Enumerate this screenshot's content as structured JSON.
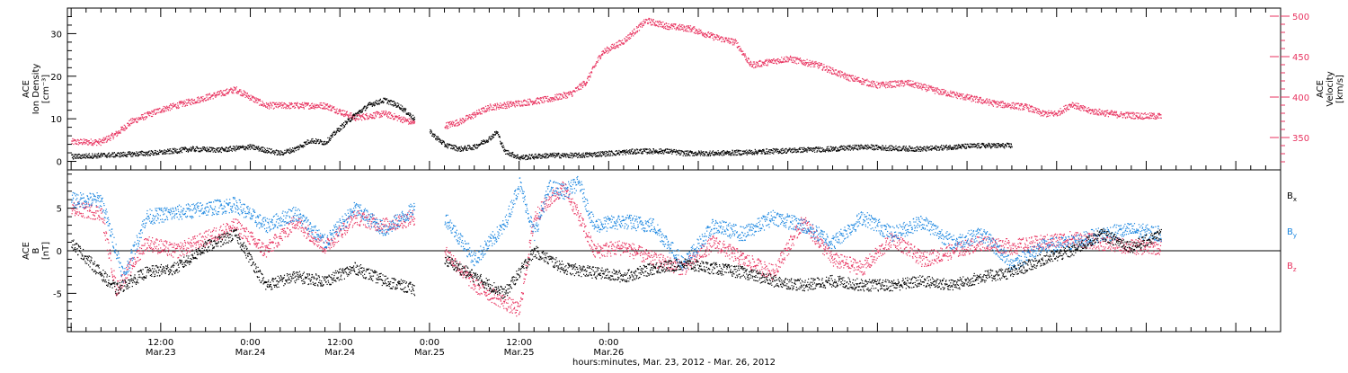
{
  "colors": {
    "black": "#000000",
    "pink": "#e8325f",
    "blue": "#1a86e0"
  },
  "chart_data": [
    {
      "type": "scatter",
      "panel": "top",
      "ylabel_left": [
        "ACE",
        "Ion Density",
        "[cm⁻³]"
      ],
      "ylabel_right": [
        "ACE",
        "Velocity",
        "[km/s]"
      ],
      "ylim_left": [
        -2,
        36
      ],
      "ylim_right": [
        310,
        510
      ],
      "left_ticks": [
        "0",
        "10",
        "20",
        "30"
      ],
      "right_ticks": [
        "350",
        "400",
        "450",
        "500"
      ],
      "series": [
        {
          "axis": "left",
          "color": "#000000",
          "values": [
            {
              "t": -12,
              "v": 1.2
            },
            {
              "t": -8,
              "v": 1.5
            },
            {
              "t": -4,
              "v": 1.8
            },
            {
              "t": 0,
              "v": 2.2
            },
            {
              "t": 4,
              "v": 3.0
            },
            {
              "t": 8,
              "v": 2.8
            },
            {
              "t": 12,
              "v": 3.5
            },
            {
              "t": 16,
              "v": 2.0
            },
            {
              "t": 18,
              "v": 3.0
            },
            {
              "t": 20,
              "v": 5.0
            },
            {
              "t": 22,
              "v": 4.5
            },
            {
              "t": 24,
              "v": 8.0
            },
            {
              "t": 26,
              "v": 11.0
            },
            {
              "t": 28,
              "v": 13.5
            },
            {
              "t": 30,
              "v": 14.5
            },
            {
              "t": 32,
              "v": 13.0
            },
            {
              "t": 34,
              "v": 10.0
            },
            {
              "t": 36,
              "v": 7.0
            },
            {
              "t": 38,
              "v": 4.0
            },
            {
              "t": 40,
              "v": 3.0
            },
            {
              "t": 42,
              "v": 3.5
            },
            {
              "t": 44,
              "v": 5.5
            },
            {
              "t": 45,
              "v": 7.0
            },
            {
              "t": 46,
              "v": 2.5
            },
            {
              "t": 48,
              "v": 1.0
            },
            {
              "t": 52,
              "v": 1.5
            },
            {
              "t": 56,
              "v": 1.5
            },
            {
              "t": 60,
              "v": 2.0
            },
            {
              "t": 64,
              "v": 2.5
            },
            {
              "t": 68,
              "v": 2.5
            },
            {
              "t": 70,
              "v": 2.0
            },
            {
              "t": 74,
              "v": 2.0
            },
            {
              "t": 78,
              "v": 2.2
            },
            {
              "t": 82,
              "v": 2.5
            },
            {
              "t": 86,
              "v": 2.8
            },
            {
              "t": 90,
              "v": 3.0
            },
            {
              "t": 94,
              "v": 3.5
            },
            {
              "t": 98,
              "v": 3.2
            },
            {
              "t": 102,
              "v": 3.0
            },
            {
              "t": 106,
              "v": 3.5
            },
            {
              "t": 110,
              "v": 3.8
            },
            {
              "t": 114,
              "v": 3.8
            }
          ]
        },
        {
          "axis": "right",
          "color": "#e8325f",
          "values": [
            {
              "t": -12,
              "v": 345
            },
            {
              "t": -8,
              "v": 345
            },
            {
              "t": -6,
              "v": 355
            },
            {
              "t": -4,
              "v": 370
            },
            {
              "t": 0,
              "v": 385
            },
            {
              "t": 4,
              "v": 395
            },
            {
              "t": 8,
              "v": 405
            },
            {
              "t": 10,
              "v": 410
            },
            {
              "t": 12,
              "v": 400
            },
            {
              "t": 14,
              "v": 390
            },
            {
              "t": 18,
              "v": 390
            },
            {
              "t": 22,
              "v": 390
            },
            {
              "t": 26,
              "v": 375
            },
            {
              "t": 30,
              "v": 380
            },
            {
              "t": 34,
              "v": 368
            },
            {
              "t": 38,
              "v": 365
            },
            {
              "t": 40,
              "v": 370
            },
            {
              "t": 44,
              "v": 388
            },
            {
              "t": 48,
              "v": 393
            },
            {
              "t": 52,
              "v": 398
            },
            {
              "t": 55,
              "v": 405
            },
            {
              "t": 57,
              "v": 420
            },
            {
              "t": 59,
              "v": 455
            },
            {
              "t": 62,
              "v": 470
            },
            {
              "t": 65,
              "v": 495
            },
            {
              "t": 68,
              "v": 488
            },
            {
              "t": 71,
              "v": 485
            },
            {
              "t": 74,
              "v": 475
            },
            {
              "t": 77,
              "v": 468
            },
            {
              "t": 79,
              "v": 440
            },
            {
              "t": 84,
              "v": 448
            },
            {
              "t": 88,
              "v": 440
            },
            {
              "t": 92,
              "v": 425
            },
            {
              "t": 96,
              "v": 415
            },
            {
              "t": 100,
              "v": 418
            },
            {
              "t": 104,
              "v": 408
            },
            {
              "t": 108,
              "v": 400
            },
            {
              "t": 112,
              "v": 392
            },
            {
              "t": 116,
              "v": 388
            },
            {
              "t": 118,
              "v": 380
            },
            {
              "t": 120,
              "v": 380
            },
            {
              "t": 122,
              "v": 392
            },
            {
              "t": 124,
              "v": 384
            },
            {
              "t": 128,
              "v": 379
            },
            {
              "t": 132,
              "v": 377
            },
            {
              "t": 134,
              "v": 377
            }
          ]
        }
      ]
    },
    {
      "type": "scatter",
      "panel": "bottom",
      "ylabel_left": [
        "ACE",
        "B",
        "[nT]"
      ],
      "ylim_left": [
        -9.5,
        9.5
      ],
      "left_ticks": [
        "-5",
        "0",
        "5"
      ],
      "zero_line": true,
      "legend_position": "right",
      "legend": [
        "Bx",
        "By",
        "Bz"
      ],
      "series": [
        {
          "name": "Bx",
          "color": "#000000",
          "values": [
            {
              "t": -12,
              "v": 1.0
            },
            {
              "t": -6,
              "v": -4.5
            },
            {
              "t": -2,
              "v": -2.5
            },
            {
              "t": 2,
              "v": -2.0
            },
            {
              "t": 6,
              "v": 0.5
            },
            {
              "t": 10,
              "v": 2.0
            },
            {
              "t": 14,
              "v": -4.0
            },
            {
              "t": 18,
              "v": -3.0
            },
            {
              "t": 22,
              "v": -3.5
            },
            {
              "t": 26,
              "v": -2.0
            },
            {
              "t": 30,
              "v": -3.5
            },
            {
              "t": 34,
              "v": -4.5
            },
            {
              "t": 38,
              "v": -1.0
            },
            {
              "t": 42,
              "v": -3.0
            },
            {
              "t": 46,
              "v": -5.0
            },
            {
              "t": 50,
              "v": 0.0
            },
            {
              "t": 54,
              "v": -2.0
            },
            {
              "t": 58,
              "v": -2.5
            },
            {
              "t": 62,
              "v": -3.0
            },
            {
              "t": 66,
              "v": -2.0
            },
            {
              "t": 70,
              "v": -1.5
            },
            {
              "t": 74,
              "v": -2.0
            },
            {
              "t": 78,
              "v": -2.5
            },
            {
              "t": 82,
              "v": -3.5
            },
            {
              "t": 86,
              "v": -4.0
            },
            {
              "t": 90,
              "v": -3.5
            },
            {
              "t": 94,
              "v": -4.0
            },
            {
              "t": 98,
              "v": -4.0
            },
            {
              "t": 102,
              "v": -3.5
            },
            {
              "t": 106,
              "v": -4.0
            },
            {
              "t": 110,
              "v": -3.0
            },
            {
              "t": 114,
              "v": -2.5
            },
            {
              "t": 118,
              "v": -1.0
            },
            {
              "t": 122,
              "v": 0.0
            },
            {
              "t": 126,
              "v": 2.0
            },
            {
              "t": 130,
              "v": 0.5
            },
            {
              "t": 134,
              "v": 2.0
            }
          ]
        },
        {
          "name": "By",
          "color": "#1a86e0",
          "values": [
            {
              "t": -12,
              "v": 6.0
            },
            {
              "t": -8,
              "v": 6.0
            },
            {
              "t": -5,
              "v": -3.0
            },
            {
              "t": -2,
              "v": 4.0
            },
            {
              "t": 2,
              "v": 4.5
            },
            {
              "t": 6,
              "v": 5.0
            },
            {
              "t": 10,
              "v": 5.5
            },
            {
              "t": 14,
              "v": 3.0
            },
            {
              "t": 18,
              "v": 4.5
            },
            {
              "t": 22,
              "v": 1.0
            },
            {
              "t": 26,
              "v": 5.0
            },
            {
              "t": 30,
              "v": 2.5
            },
            {
              "t": 34,
              "v": 5.0
            },
            {
              "t": 38,
              "v": 4.0
            },
            {
              "t": 42,
              "v": -1.0
            },
            {
              "t": 46,
              "v": 3.0
            },
            {
              "t": 48,
              "v": 8.0
            },
            {
              "t": 50,
              "v": 2.0
            },
            {
              "t": 52,
              "v": 7.5
            },
            {
              "t": 54,
              "v": 7.0
            },
            {
              "t": 56,
              "v": 8.0
            },
            {
              "t": 58,
              "v": 3.0
            },
            {
              "t": 62,
              "v": 3.5
            },
            {
              "t": 66,
              "v": 3.0
            },
            {
              "t": 70,
              "v": -1.5
            },
            {
              "t": 74,
              "v": 3.0
            },
            {
              "t": 78,
              "v": 2.0
            },
            {
              "t": 82,
              "v": 4.0
            },
            {
              "t": 86,
              "v": 3.0
            },
            {
              "t": 90,
              "v": 1.0
            },
            {
              "t": 94,
              "v": 4.0
            },
            {
              "t": 98,
              "v": 2.0
            },
            {
              "t": 102,
              "v": 3.5
            },
            {
              "t": 106,
              "v": 1.0
            },
            {
              "t": 110,
              "v": 2.0
            },
            {
              "t": 114,
              "v": -1.5
            },
            {
              "t": 118,
              "v": 0.5
            },
            {
              "t": 122,
              "v": 1.0
            },
            {
              "t": 126,
              "v": 2.0
            },
            {
              "t": 130,
              "v": 2.5
            },
            {
              "t": 134,
              "v": 2.0
            }
          ]
        },
        {
          "name": "Bz",
          "color": "#e8325f",
          "values": [
            {
              "t": -12,
              "v": 5.0
            },
            {
              "t": -8,
              "v": 4.5
            },
            {
              "t": -6,
              "v": -4.5
            },
            {
              "t": -2,
              "v": 1.0
            },
            {
              "t": 2,
              "v": 0.0
            },
            {
              "t": 6,
              "v": 1.5
            },
            {
              "t": 10,
              "v": 3.0
            },
            {
              "t": 14,
              "v": 0.0
            },
            {
              "t": 18,
              "v": 3.5
            },
            {
              "t": 22,
              "v": 0.5
            },
            {
              "t": 26,
              "v": 4.0
            },
            {
              "t": 30,
              "v": 3.0
            },
            {
              "t": 34,
              "v": 4.0
            },
            {
              "t": 38,
              "v": 0.0
            },
            {
              "t": 42,
              "v": -4.0
            },
            {
              "t": 46,
              "v": -6.0
            },
            {
              "t": 48,
              "v": -7.0
            },
            {
              "t": 50,
              "v": 4.0
            },
            {
              "t": 52,
              "v": 6.0
            },
            {
              "t": 54,
              "v": 7.5
            },
            {
              "t": 56,
              "v": 4.0
            },
            {
              "t": 58,
              "v": 0.0
            },
            {
              "t": 62,
              "v": 0.5
            },
            {
              "t": 66,
              "v": -1.0
            },
            {
              "t": 70,
              "v": -2.0
            },
            {
              "t": 74,
              "v": 1.0
            },
            {
              "t": 78,
              "v": -1.0
            },
            {
              "t": 82,
              "v": -2.5
            },
            {
              "t": 86,
              "v": 3.5
            },
            {
              "t": 90,
              "v": -1.0
            },
            {
              "t": 94,
              "v": -2.0
            },
            {
              "t": 98,
              "v": 1.5
            },
            {
              "t": 102,
              "v": -1.0
            },
            {
              "t": 106,
              "v": 0.0
            },
            {
              "t": 110,
              "v": 1.0
            },
            {
              "t": 114,
              "v": 0.5
            },
            {
              "t": 118,
              "v": 1.0
            },
            {
              "t": 122,
              "v": 1.5
            },
            {
              "t": 126,
              "v": 1.0
            },
            {
              "t": 130,
              "v": 0.5
            },
            {
              "t": 134,
              "v": 0.5
            }
          ]
        }
      ]
    }
  ],
  "x_axis": {
    "range_hours": [
      -12.5,
      150
    ],
    "major_ticks": [
      {
        "t": 0,
        "time": "12:00",
        "date": "Mar.23"
      },
      {
        "t": 12,
        "time": "0:00",
        "date": "Mar.24"
      },
      {
        "t": 24,
        "time": "12:00",
        "date": "Mar.24"
      },
      {
        "t": 36,
        "time": "0:00",
        "date": "Mar.25"
      },
      {
        "t": 48,
        "time": "12:00",
        "date": "Mar.25"
      },
      {
        "t": 60,
        "time": "0:00",
        "date": "Mar.26"
      }
    ],
    "xlabel": "hours:minutes, Mar. 23, 2012 - Mar. 26, 2012"
  },
  "legend": {
    "bx": "B",
    "by": "B",
    "bz": "B",
    "bx_sub": "x",
    "by_sub": "y",
    "bz_sub": "z"
  }
}
